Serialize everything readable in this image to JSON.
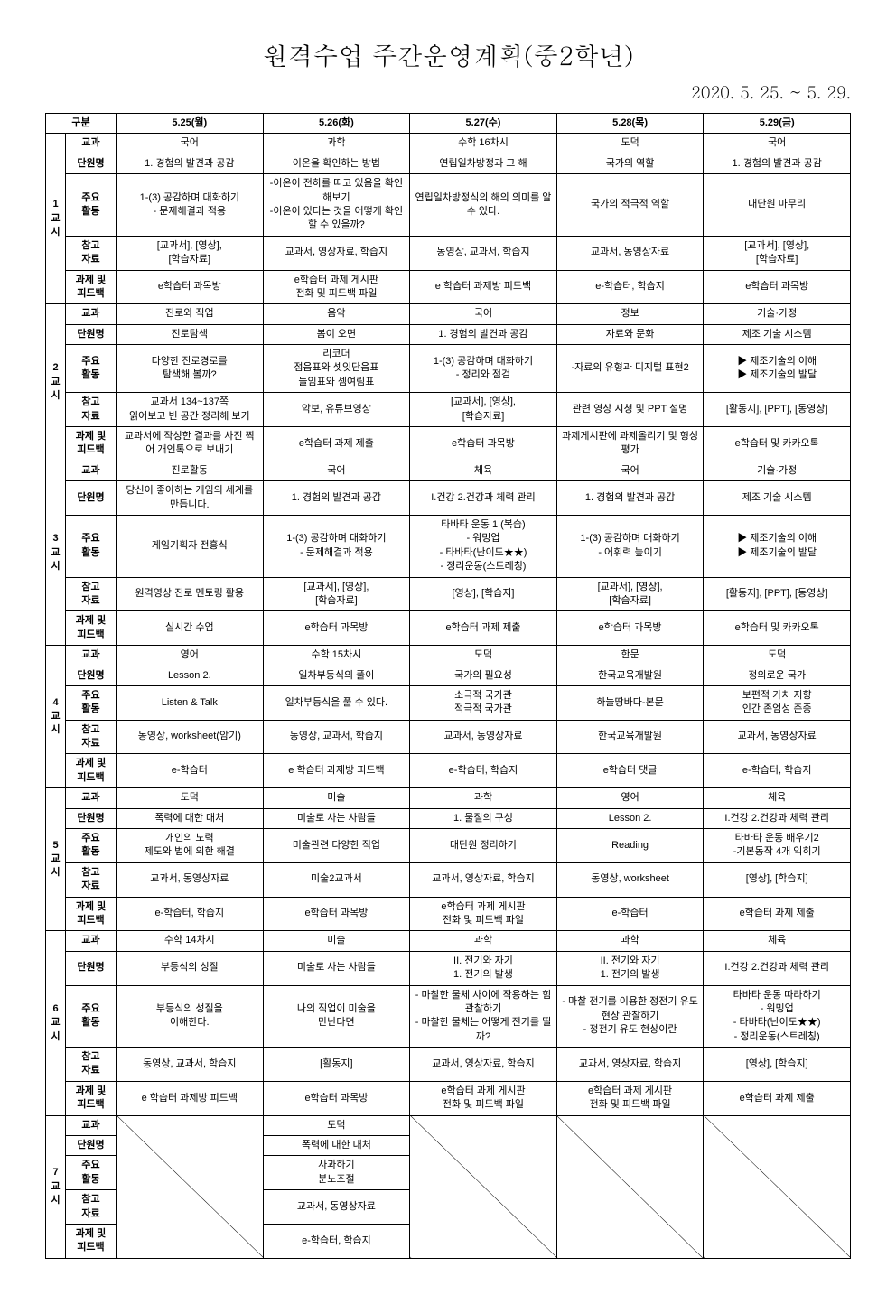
{
  "title": "원격수업 주간운영계획(중2학년)",
  "date_range": "2020. 5. 25. ~ 5. 29.",
  "header": {
    "gubun": "구분",
    "days": [
      "5.25(월)",
      "5.26(화)",
      "5.27(수)",
      "5.28(목)",
      "5.29(금)"
    ]
  },
  "row_labels": {
    "subject": "교과",
    "unit": "단원명",
    "activity": "주요\n활동",
    "ref": "참고\n자료",
    "feedback": "과제 및\n피드백"
  },
  "period_suffix": "교시",
  "periods": [
    {
      "num": "1",
      "subject": [
        "국어",
        "과학",
        "수학 16차시",
        "도덕",
        "국어"
      ],
      "unit": [
        "1. 경험의 발견과 공감",
        "이온을 확인하는 방법",
        "연립일차방정과 그 해",
        "국가의 역할",
        "1. 경험의 발견과 공감"
      ],
      "activity": [
        "1-(3) 공감하며 대화하기\n- 문제해결과 적용",
        "-이온이 전하를 띠고 있음을 확인해보기\n-이온이 있다는 것을 어떻게 확인할 수 있을까?",
        "연립일차방정식의 해의 의미를 알수 있다.",
        "국가의 적극적 역할",
        "대단원 마무리"
      ],
      "ref": [
        "[교과서], [영상],\n[학습자료]",
        "교과서, 영상자료, 학습지",
        "동영상, 교과서, 학습지",
        "교과서, 동영상자료",
        "[교과서], [영상],\n[학습자료]"
      ],
      "feedback": [
        "e학습터 과목방",
        "e학습터 과제 게시판\n전화 및 피드백 파일",
        "e 학습터 과제방 피드백",
        "e-학습터, 학습지",
        "e학습터 과목방"
      ]
    },
    {
      "num": "2",
      "subject": [
        "진로와 직업",
        "음악",
        "국어",
        "정보",
        "기술·가정"
      ],
      "unit": [
        "진로탐색",
        "봄이 오면",
        "1. 경험의 발견과 공감",
        "자료와 문화",
        "제조 기술 시스템"
      ],
      "activity": [
        "다양한 진로경로를\n탐색해 볼까?",
        "리코더\n점음표와 셋잇단음표\n늘임표와 셈여림표",
        "1-(3) 공감하며 대화하기\n- 정리와 점검",
        "-자료의 유형과 디지털 표현2",
        "▶ 제조기술의 이해\n▶ 제조기술의 발달"
      ],
      "ref": [
        "교과서 134~137쪽\n읽어보고 빈 공간 정리해 보기",
        "악보, 유튜브영상",
        "[교과서], [영상],\n[학습자료]",
        "관련 영상 시청 및 PPT 설명",
        "[활동지], [PPT], [동영상]"
      ],
      "feedback": [
        "교과서에 작성한 결과를 사진 찍어 개인톡으로 보내기",
        "e학습터 과제 제출",
        "e학습터 과목방",
        "과제게시판에 과제올리기 및 형성평가",
        "e학습터 및 카카오톡"
      ]
    },
    {
      "num": "3",
      "subject": [
        "진로활동",
        "국어",
        "체육",
        "국어",
        "기술·가정"
      ],
      "unit": [
        "당신이 좋아하는 게임의 세계를 만듭니다.",
        "1. 경험의 발견과 공감",
        "I.건강 2.건강과 체력 관리",
        "1. 경험의 발견과 공감",
        "제조 기술 시스템"
      ],
      "activity": [
        "게임기획자 전홍식",
        "1-(3) 공감하며 대화하기\n- 문제해결과 적용",
        "타바타 운동 1 (복습)\n- 워밍업\n- 타바타(난이도★★)\n- 정리운동(스트레칭)",
        "1-(3) 공감하며 대화하기\n- 어휘력 높이기",
        "▶ 제조기술의 이해\n▶ 제조기술의 발달"
      ],
      "ref": [
        "원격영상 진로 멘토링 활용",
        "[교과서], [영상],\n[학습자료]",
        "[영상], [학습지]",
        "[교과서], [영상],\n[학습자료]",
        "[활동지], [PPT], [동영상]"
      ],
      "feedback": [
        "실시간 수업",
        "e학습터 과목방",
        "e학습터 과제 제출",
        "e학습터 과목방",
        "e학습터 및 카카오톡"
      ]
    },
    {
      "num": "4",
      "subject": [
        "영어",
        "수학 15차시",
        "도덕",
        "한문",
        "도덕"
      ],
      "unit": [
        "Lesson 2.",
        "일차부등식의 풀이",
        "국가의 필요성",
        "한국교육개발원",
        "정의로운 국가"
      ],
      "activity": [
        "Listen & Talk",
        "일차부등식을 풀 수 있다.",
        "소극적 국가관\n적극적 국가관",
        "하늘땅바다-본문",
        "보편적 가치 지향\n인간 존엄성 존중"
      ],
      "ref": [
        "동영상, worksheet(암기)",
        "동영상, 교과서, 학습지",
        "교과서, 동영상자료",
        "한국교육개발원",
        "교과서, 동영상자료"
      ],
      "feedback": [
        "e-학습터",
        "e 학습터 과제방 피드백",
        "e-학습터, 학습지",
        "e학습터 댓글",
        "e-학습터, 학습지"
      ]
    },
    {
      "num": "5",
      "subject": [
        "도덕",
        "미술",
        "과학",
        "영어",
        "체육"
      ],
      "unit": [
        "폭력에 대한 대처",
        "미술로 사는 사람들",
        "1. 물질의 구성",
        "Lesson 2.",
        "I.건강 2.건강과 체력 관리"
      ],
      "activity": [
        "개인의 노력\n제도와 법에 의한 해결",
        "미술관련 다양한 직업",
        "대단원 정리하기",
        "Reading",
        "타바타 운동 배우기2\n-기본동작 4개 익히기"
      ],
      "ref": [
        "교과서, 동영상자료",
        "미술2교과서",
        "교과서, 영상자료, 학습지",
        "동영상, worksheet",
        "[영상], [학습지]"
      ],
      "feedback": [
        "e-학습터, 학습지",
        "e학습터 과목방",
        "e학습터 과제 게시판\n전화 및 피드백 파일",
        "e-학습터",
        "e학습터 과제 제출"
      ]
    },
    {
      "num": "6",
      "subject": [
        "수학 14차시",
        "미술",
        "과학",
        "과학",
        "체육"
      ],
      "unit": [
        "부등식의 성질",
        "미술로 사는 사람들",
        "II. 전기와 자기\n1. 전기의 발생",
        "II. 전기와 자기\n1. 전기의 발생",
        "I.건강 2.건강과 체력 관리"
      ],
      "activity": [
        "부등식의 성질을\n이해한다.",
        "나의 직업이 미술을\n만난다면",
        "- 마찰한 물체 사이에 작용하는 힘 관찰하기\n- 마찰한 물체는 어떻게 전기를 띨까?",
        "- 마찰 전기를 이용한 정전기 유도 현상 관찰하기\n- 정전기 유도 현상이란",
        "타바타 운동 따라하기\n- 워밍업\n- 타바타(난이도★★)\n- 정리운동(스트레칭)"
      ],
      "ref": [
        "동영상, 교과서, 학습지",
        "[활동지]",
        "교과서, 영상자료, 학습지",
        "교과서, 영상자료, 학습지",
        "[영상], [학습지]"
      ],
      "feedback": [
        "e 학습터 과제방 피드백",
        "e학습터 과목방",
        "e학습터 과제 게시판\n전화 및 피드백 파일",
        "e학습터 과제 게시판\n전화 및 피드백 파일",
        "e학습터 과제 제출"
      ]
    },
    {
      "num": "7",
      "subject": [
        "",
        "도덕",
        "",
        "",
        ""
      ],
      "unit": [
        "",
        "폭력에 대한 대처",
        "",
        "",
        ""
      ],
      "activity": [
        "",
        "사과하기\n분노조절",
        "",
        "",
        ""
      ],
      "ref": [
        "",
        "교과서, 동영상자료",
        "",
        "",
        ""
      ],
      "feedback": [
        "",
        "e-학습터, 학습지",
        "",
        "",
        ""
      ]
    }
  ]
}
